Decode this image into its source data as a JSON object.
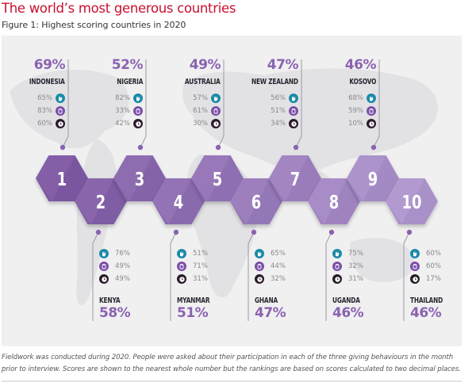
{
  "header": {
    "title": "The world’s most generous countries",
    "subtitle": "Figure 1: Highest scoring countries in 2020"
  },
  "footnote": "Fieldwork was conducted during 2020. People were asked about their participation in each of the three giving behaviours in the month prior to interview. Scores are shown to the nearest whole number but the rankings are based on scores calculated to two decimal places.",
  "icons": {
    "helping_stranger": "hand-icon",
    "donating_money": "money-jar-icon",
    "volunteering_time": "clock-icon"
  },
  "colors": {
    "title": "#c8102e",
    "percent": "#8a63b0",
    "hex_darkest": "#7a57a0",
    "hex_lightest": "#a890c8",
    "helping_icon": "#1a8aa8",
    "donating_icon": "#7b4fa8",
    "volunteering_icon": "#2a1a2a"
  },
  "chart_data": {
    "type": "table",
    "title": "The world’s most generous countries",
    "subtitle": "Figure 1: Highest scoring countries in 2020",
    "columns": [
      "rank",
      "country",
      "score",
      "helping_stranger",
      "donating_money",
      "volunteering_time"
    ],
    "rows": [
      {
        "rank": "1",
        "country": "INDONESIA",
        "score": "69%",
        "helping": "65%",
        "donating": "83%",
        "volunteering": "60%"
      },
      {
        "rank": "2",
        "country": "KENYA",
        "score": "58%",
        "helping": "76%",
        "donating": "49%",
        "volunteering": "49%"
      },
      {
        "rank": "3",
        "country": "NIGERIA",
        "score": "52%",
        "helping": "82%",
        "donating": "33%",
        "volunteering": "42%"
      },
      {
        "rank": "4",
        "country": "MYANMAR",
        "score": "51%",
        "helping": "51%",
        "donating": "71%",
        "volunteering": "31%"
      },
      {
        "rank": "5",
        "country": "AUSTRALIA",
        "score": "49%",
        "helping": "57%",
        "donating": "61%",
        "volunteering": "30%"
      },
      {
        "rank": "6",
        "country": "GHANA",
        "score": "47%",
        "helping": "65%",
        "donating": "44%",
        "volunteering": "32%"
      },
      {
        "rank": "7",
        "country": "NEW ZEALAND",
        "score": "47%",
        "helping": "56%",
        "donating": "51%",
        "volunteering": "34%"
      },
      {
        "rank": "8",
        "country": "UGANDA",
        "score": "46%",
        "helping": "75%",
        "donating": "32%",
        "volunteering": "31%"
      },
      {
        "rank": "9",
        "country": "KOSOVO",
        "score": "46%",
        "helping": "68%",
        "donating": "59%",
        "volunteering": "10%"
      },
      {
        "rank": "10",
        "country": "THAILAND",
        "score": "46%",
        "helping": "60%",
        "donating": "60%",
        "volunteering": "17%"
      }
    ]
  }
}
